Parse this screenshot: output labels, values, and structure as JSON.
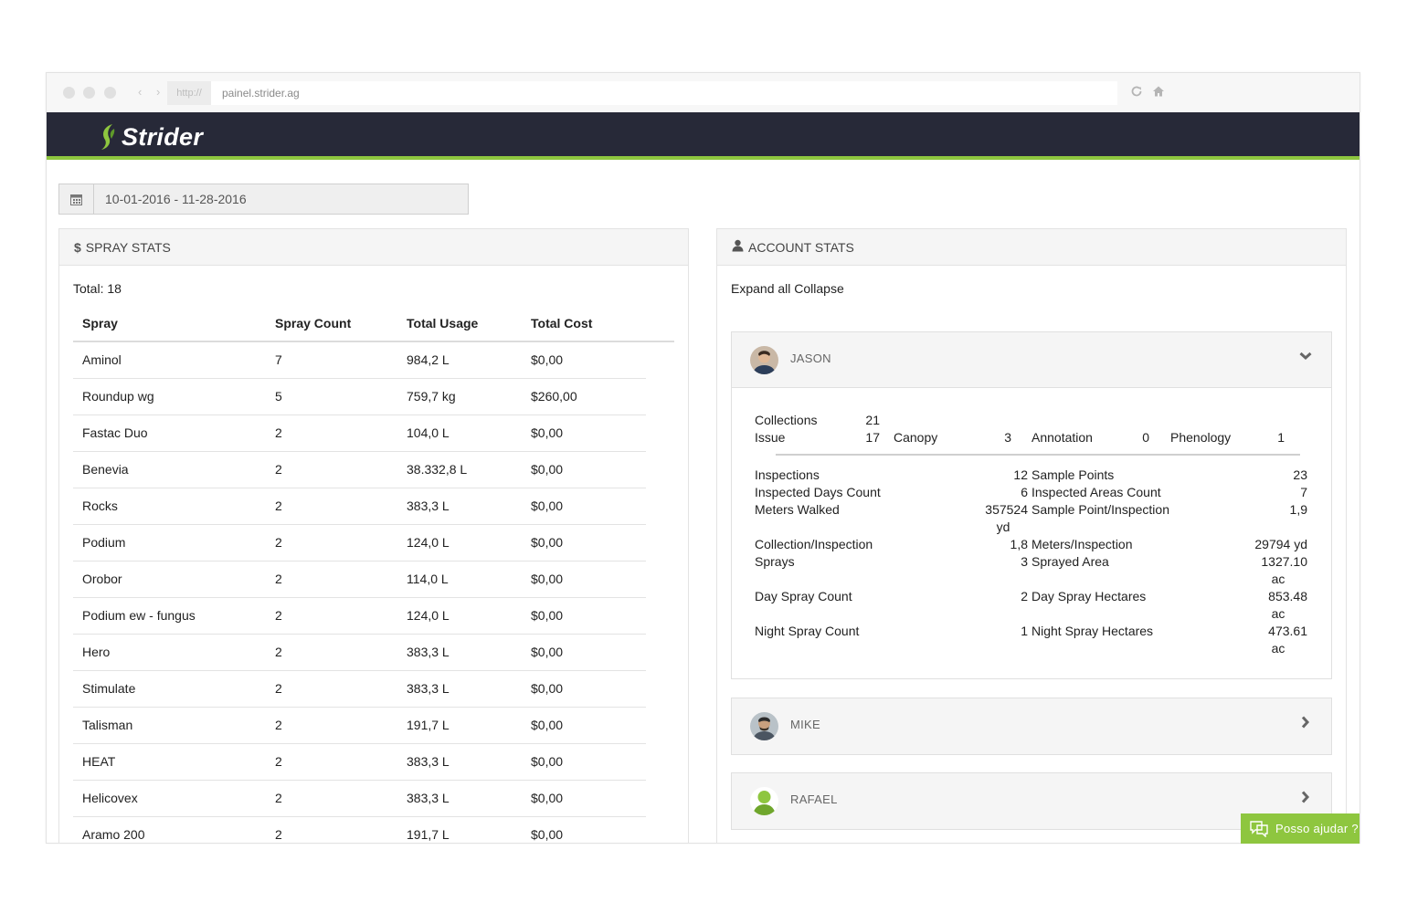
{
  "browser": {
    "url_scheme": "http://",
    "url": "painel.strider.ag",
    "nav_arrows": "‹ ›",
    "reload_icon": "reload-icon",
    "home_icon": "home-icon"
  },
  "app": {
    "brand": "Strider",
    "accent_color": "#8ec63f",
    "header_color": "#272938"
  },
  "date_range": {
    "value": "10-01-2016 - 11-28-2016",
    "icon": "calendar-icon"
  },
  "spray_stats": {
    "icon_glyph": "$",
    "title": "SPRAY STATS",
    "total": "Total: 18",
    "columns": [
      "Spray",
      "Spray Count",
      "Total Usage",
      "Total Cost"
    ],
    "rows": [
      [
        "Aminol",
        "7",
        "984,2 L",
        "$0,00"
      ],
      [
        "Roundup wg",
        "5",
        "759,7 kg",
        "$260,00"
      ],
      [
        "Fastac Duo",
        "2",
        "104,0 L",
        "$0,00"
      ],
      [
        "Benevia",
        "2",
        "38.332,8 L",
        "$0,00"
      ],
      [
        "Rocks",
        "2",
        "383,3 L",
        "$0,00"
      ],
      [
        "Podium",
        "2",
        "124,0 L",
        "$0,00"
      ],
      [
        "Orobor",
        "2",
        "114,0 L",
        "$0,00"
      ],
      [
        "Podium ew - fungus",
        "2",
        "124,0 L",
        "$0,00"
      ],
      [
        "Hero",
        "2",
        "383,3 L",
        "$0,00"
      ],
      [
        "Stimulate",
        "2",
        "383,3 L",
        "$0,00"
      ],
      [
        "Talisman",
        "2",
        "191,7 L",
        "$0,00"
      ],
      [
        "HEAT",
        "2",
        "383,3 L",
        "$0,00"
      ],
      [
        "Helicovex",
        "2",
        "383,3 L",
        "$0,00"
      ],
      [
        "Aramo 200",
        "2",
        "191,7 L",
        "$0,00"
      ]
    ]
  },
  "account_stats": {
    "title": "ACCOUNT STATS",
    "expand_label": "Expand all",
    "collapse_label": "Collapse",
    "users": [
      {
        "name": "JASON",
        "expanded": true,
        "summary": {
          "collections_label": "Collections",
          "collections": "21",
          "issue_label": "Issue",
          "issue": "17",
          "canopy_label": "Canopy",
          "canopy": "3",
          "annotation_label": "Annotation",
          "annotation": "0",
          "phenology_label": "Phenology",
          "phenology": "1"
        },
        "left_stats": [
          {
            "label": "Inspections",
            "value": "12"
          },
          {
            "label": "Inspected Days Count",
            "value": "6"
          },
          {
            "label": "Meters Walked",
            "value": "357524",
            "unit": "yd"
          },
          {
            "label": "Collection/Inspection",
            "value": "1,8"
          },
          {
            "label": "Sprays",
            "value": "3"
          },
          {
            "label": "Day Spray Count",
            "value": "2"
          },
          {
            "label": "Night Spray Count",
            "value": "1"
          }
        ],
        "right_stats": [
          {
            "label": "Sample Points",
            "value": "23"
          },
          {
            "label": "Inspected Areas Count",
            "value": "7"
          },
          {
            "label": "Sample Point/Inspection",
            "value": "1,9"
          },
          {
            "label": "Meters/Inspection",
            "value": "29794 yd"
          },
          {
            "label": "Sprayed Area",
            "value": "1327.10",
            "unit": "ac"
          },
          {
            "label": "Day Spray Hectares",
            "value": "853.48",
            "unit": "ac"
          },
          {
            "label": "Night Spray Hectares",
            "value": "473.61",
            "unit": "ac"
          }
        ]
      },
      {
        "name": "MIKE",
        "expanded": false
      },
      {
        "name": "RAFAEL",
        "expanded": false
      }
    ]
  },
  "help_widget": {
    "label": "Posso ajudar ?",
    "icon": "chat-icon"
  }
}
